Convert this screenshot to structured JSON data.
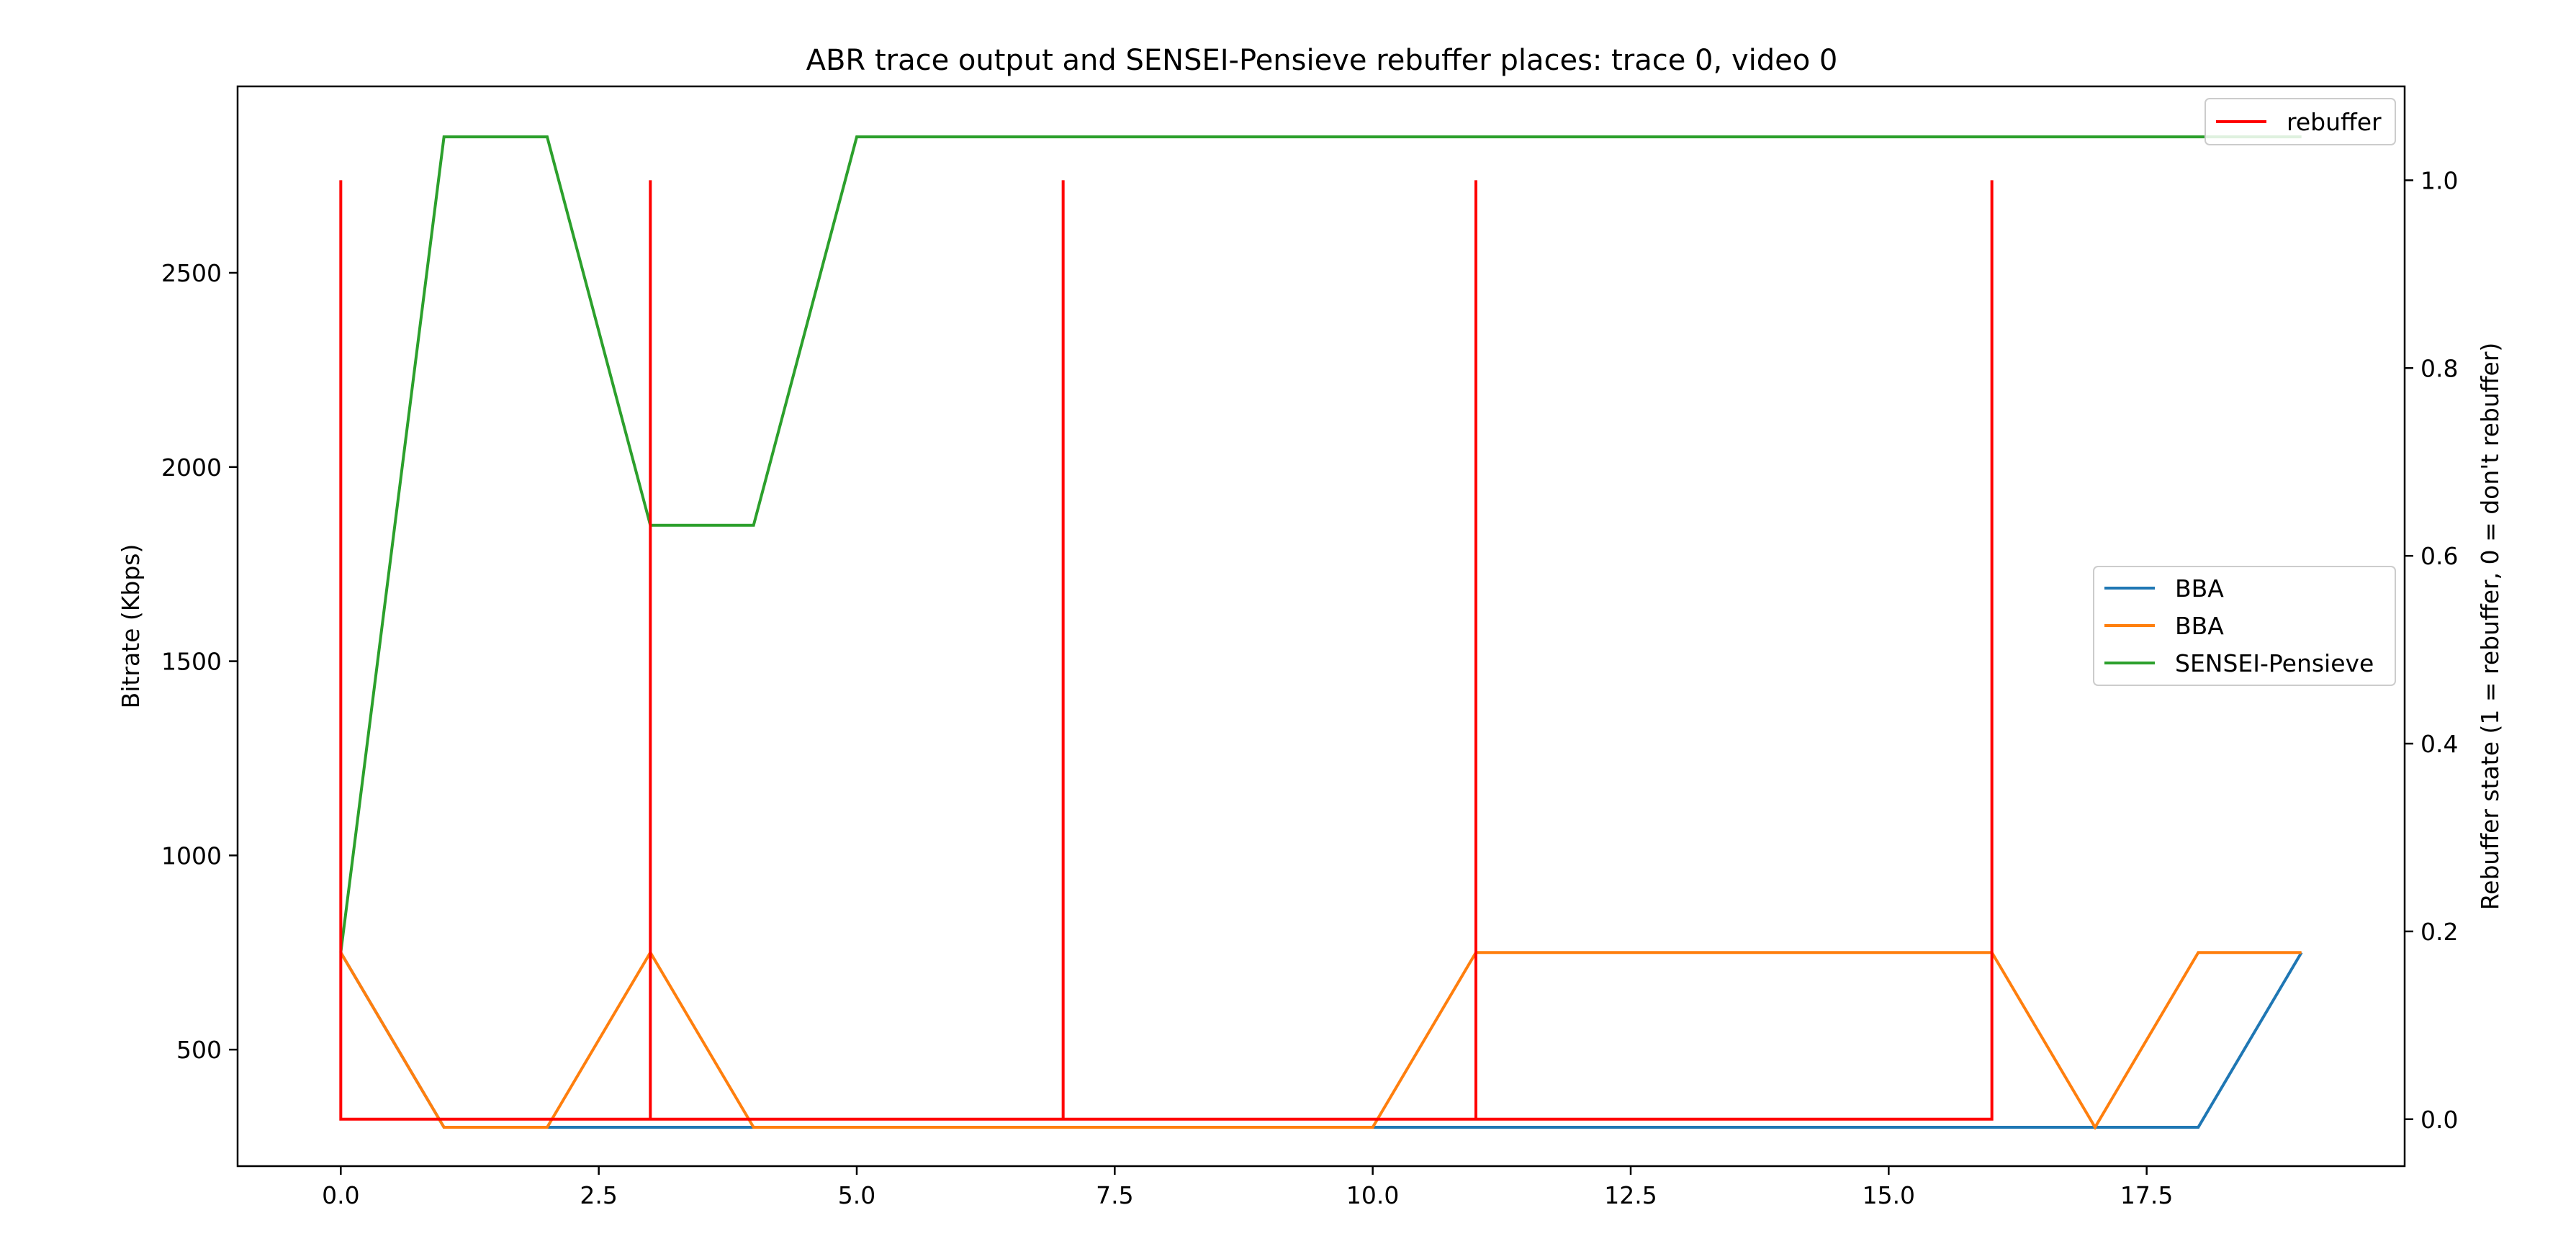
{
  "chart_data": {
    "type": "line",
    "title": "ABR trace output and SENSEI-Pensieve rebuffer places: trace 0, video 0",
    "xlabel": "",
    "ylabel_left": "Bitrate (Kbps)",
    "ylabel_right": "Rebuffer state (1 = rebuffer, 0 = don't rebuffer)",
    "xlim": [
      -1.0,
      20.0
    ],
    "ylim_left": [
      200,
      2980
    ],
    "ylim_right": [
      -0.05,
      1.1
    ],
    "x_ticks": [
      0.0,
      2.5,
      5.0,
      7.5,
      10.0,
      12.5,
      15.0,
      17.5
    ],
    "x_tick_labels": [
      "0.0",
      "2.5",
      "5.0",
      "7.5",
      "10.0",
      "12.5",
      "15.0",
      "17.5"
    ],
    "y_left_ticks": [
      500,
      1000,
      1500,
      2000,
      2500
    ],
    "y_left_tick_labels": [
      "500",
      "1000",
      "1500",
      "2000",
      "2500"
    ],
    "y_right_ticks": [
      0.0,
      0.2,
      0.4,
      0.6,
      0.8,
      1.0
    ],
    "y_right_tick_labels": [
      "0.0",
      "0.2",
      "0.4",
      "0.6",
      "0.8",
      "1.0"
    ],
    "grid": false,
    "legend_left_axis_placement": "center-right",
    "legend_right_axis_placement": "top-right",
    "series": [
      {
        "name": "BBA",
        "axis": "left",
        "color": "#1f77b4",
        "x": [
          0,
          1,
          2,
          3,
          4,
          5,
          6,
          7,
          8,
          9,
          10,
          11,
          12,
          13,
          14,
          15,
          16,
          17,
          18,
          19
        ],
        "y": [
          750,
          300,
          300,
          300,
          300,
          300,
          300,
          300,
          300,
          300,
          300,
          300,
          300,
          300,
          300,
          300,
          300,
          300,
          300,
          750
        ]
      },
      {
        "name": "BBA",
        "axis": "left",
        "color": "#ff7f0e",
        "x": [
          0,
          1,
          2,
          3,
          4,
          5,
          6,
          7,
          8,
          9,
          10,
          11,
          12,
          13,
          14,
          15,
          16,
          17,
          18,
          19
        ],
        "y": [
          750,
          300,
          300,
          750,
          300,
          300,
          300,
          300,
          300,
          300,
          300,
          750,
          750,
          750,
          750,
          750,
          750,
          300,
          750,
          750
        ]
      },
      {
        "name": "SENSEI-Pensieve",
        "axis": "left",
        "color": "#2ca02c",
        "x": [
          0,
          1,
          2,
          3,
          4,
          5,
          6,
          7,
          8,
          9,
          10,
          11,
          12,
          13,
          14,
          15,
          16,
          17,
          18,
          19
        ],
        "y": [
          750,
          2850,
          2850,
          1850,
          1850,
          2850,
          2850,
          2850,
          2850,
          2850,
          2850,
          2850,
          2850,
          2850,
          2850,
          2850,
          2850,
          2850,
          2850,
          2850
        ]
      },
      {
        "name": "rebuffer",
        "axis": "right",
        "color": "#ff0000",
        "x": [
          0,
          0,
          0,
          3,
          3,
          3,
          7,
          7,
          7,
          11,
          11,
          11,
          16,
          16,
          16
        ],
        "y": [
          0,
          1,
          0,
          0,
          1,
          0,
          0,
          1,
          0,
          0,
          1,
          0,
          0,
          1,
          0
        ]
      }
    ]
  }
}
